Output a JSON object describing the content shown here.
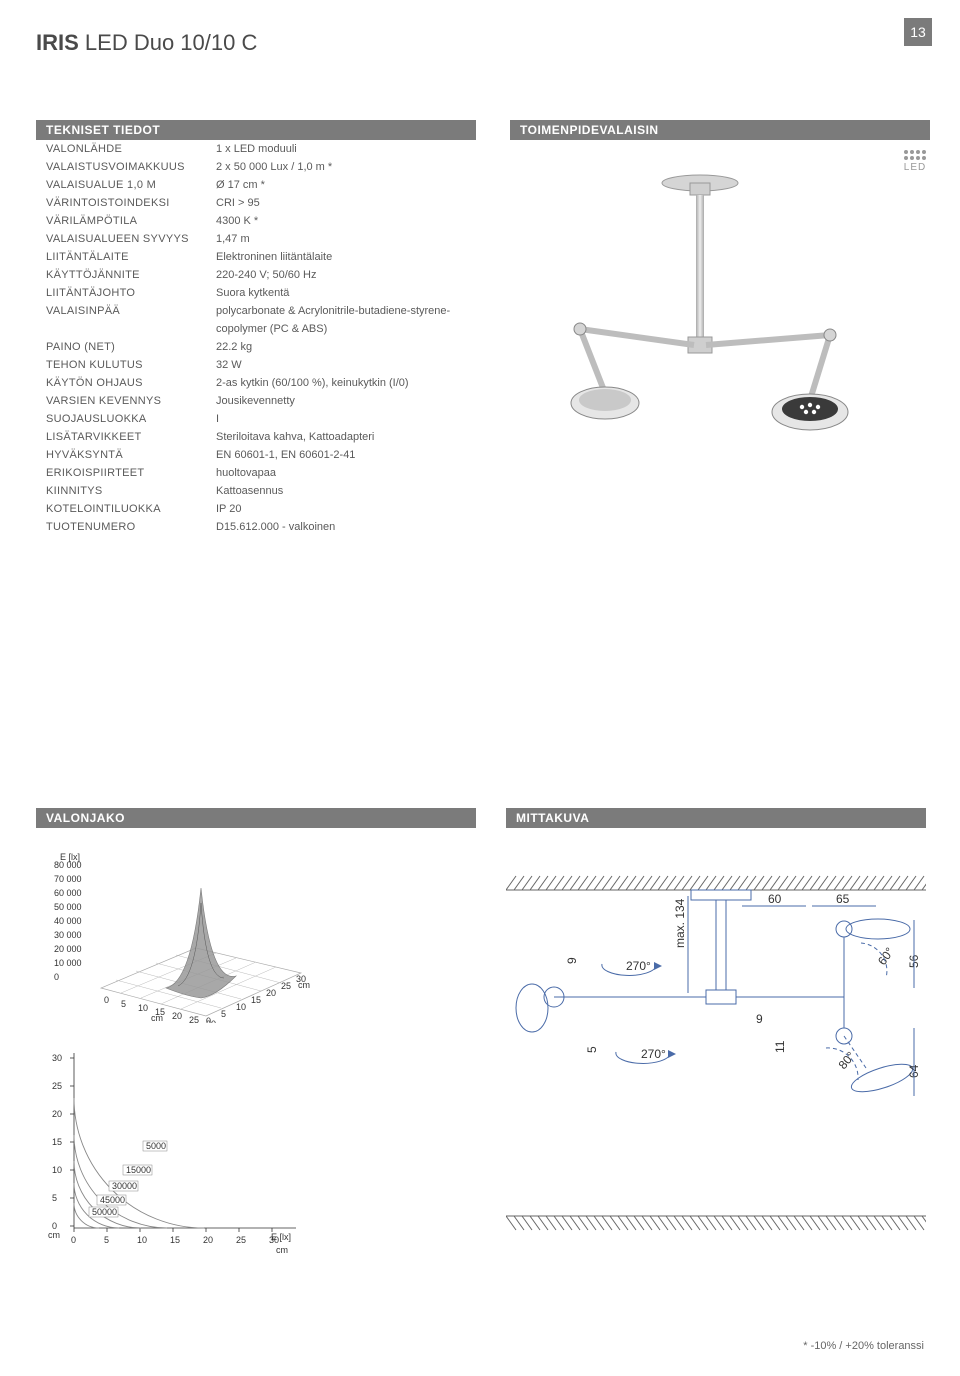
{
  "page_number": "13",
  "title_bold": "IRIS",
  "title_rest": " LED Duo 10/10 C",
  "specs": {
    "header": "TEKNISET TIEDOT",
    "rows": [
      {
        "label": "VALONLÄHDE",
        "value": "1 x LED moduuli"
      },
      {
        "label": "VALAISTUSVOIMAKKUUS",
        "value": "2 x 50 000 Lux / 1,0 m *"
      },
      {
        "label": "VALAISUALUE 1,0 M",
        "value": "Ø 17 cm *"
      },
      {
        "label": "VÄRINTOISTOINDEKSI",
        "value": "CRI > 95"
      },
      {
        "label": "VÄRILÄMPÖTILA",
        "value": "4300 K *"
      },
      {
        "label": "VALAISUALUEEN SYVYYS",
        "value": "1,47 m"
      },
      {
        "label": "LIITÄNTÄLAITE",
        "value": "Elektroninen liitäntälaite"
      },
      {
        "label": "KÄYTTÖJÄNNITE",
        "value": "220-240 V; 50/60 Hz"
      },
      {
        "label": "LIITÄNTÄJOHTO",
        "value": "Suora kytkentä"
      },
      {
        "label": "VALAISINPÄÄ",
        "value": "polycarbonate & Acrylonitrile-butadiene-styrene-"
      },
      {
        "label": "",
        "value": "copolymer (PC & ABS)"
      },
      {
        "label": "PAINO (NET)",
        "value": "22.2 kg"
      },
      {
        "label": "TEHON KULUTUS",
        "value": "32 W"
      },
      {
        "label": "KÄYTÖN OHJAUS",
        "value": "2-as kytkin (60/100 %), keinukytkin (I/0)"
      },
      {
        "label": "VARSIEN KEVENNYS",
        "value": "Jousikevennetty"
      },
      {
        "label": "SUOJAUSLUOKKA",
        "value": "I"
      },
      {
        "label": "LISÄTARVIKKEET",
        "value": "Steriloitava kahva, Kattoadapteri"
      },
      {
        "label": "HYVÄKSYNTÄ",
        "value": "EN 60601-1, EN 60601-2-41"
      },
      {
        "label": "ERIKOISPIIRTEET",
        "value": "huoltovapaa"
      },
      {
        "label": "KIINNITYS",
        "value": "Kattoasennus"
      },
      {
        "label": "KOTELOINTILUOKKA",
        "value": "IP 20"
      },
      {
        "label": "TUOTENUMERO",
        "value": "D15.612.000 - valkoinen"
      }
    ]
  },
  "fixture": {
    "header": "TOIMENPIDEVALAISIN",
    "led_label": "LED"
  },
  "valonjako": {
    "header": "VALONJAKO",
    "chart3d": {
      "y_label": "E [lx]",
      "y_ticks": [
        "80 000",
        "70 000",
        "60 000",
        "50 000",
        "40 000",
        "30 000",
        "20 000",
        "10 000",
        "0"
      ],
      "x_ticks": [
        "0",
        "5",
        "10",
        "15",
        "20",
        "25",
        "30"
      ],
      "z_ticks": [
        "0",
        "5",
        "10",
        "15",
        "20",
        "25",
        "30"
      ],
      "x_unit": "cm",
      "z_unit": "cm",
      "peak_color": "#888888",
      "grid_color": "#aaaaaa"
    },
    "contour": {
      "y_ticks": [
        "30",
        "25",
        "20",
        "15",
        "10",
        "5",
        "0"
      ],
      "x_ticks": [
        "0",
        "5",
        "10",
        "15",
        "20",
        "25",
        "30"
      ],
      "y_unit": "cm",
      "x_unit": "cm",
      "x_label": "E [lx]",
      "levels": [
        "50000",
        "45000",
        "30000",
        "15000",
        "5000"
      ],
      "ring_color": "#888888"
    }
  },
  "mittakuva": {
    "header": "MITTAKUVA",
    "dims": {
      "d60": "60",
      "d65": "65",
      "d134": "max. 134",
      "d9a": "9",
      "d270a": "270°",
      "d9b": "9",
      "d5": "5",
      "d270b": "270°",
      "d11": "11",
      "d60deg": "60°",
      "d80deg": "80°",
      "d56": "56",
      "d64": "64"
    },
    "line_color": "#4a6ba8",
    "hatch_color": "#666666"
  },
  "footer": "*  -10% / +20% toleranssi"
}
